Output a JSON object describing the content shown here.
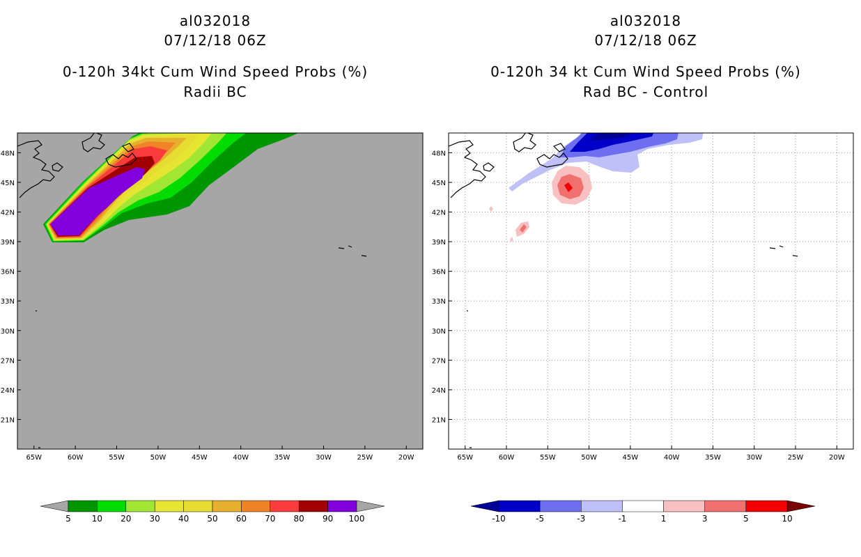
{
  "chart_data": [
    {
      "type": "heatmap",
      "storm_id": "al032018",
      "datetime": "07/12/18 06Z",
      "title": "0-120h 34kt Cum Wind Speed Probs (%)",
      "subtitle": "Radii BC",
      "x_ticks": [
        "65W",
        "60W",
        "55W",
        "50W",
        "45W",
        "40W",
        "35W",
        "30W",
        "25W",
        "20W"
      ],
      "y_ticks": [
        "48N",
        "45N",
        "42N",
        "39N",
        "36N",
        "33N",
        "30N",
        "27N",
        "24N",
        "21N"
      ],
      "xlim": [
        -67,
        -18
      ],
      "ylim": [
        18,
        50
      ],
      "grid": false,
      "background_color": "#a6a6a6",
      "colorbar": {
        "labels": [
          "5",
          "10",
          "20",
          "30",
          "40",
          "50",
          "60",
          "70",
          "80",
          "90",
          "100"
        ],
        "colors": [
          "#009600",
          "#00dc00",
          "#a0e632",
          "#e6e632",
          "#e6dc32",
          "#e6af2d",
          "#f08228",
          "#fa3c3c",
          "#a00000",
          "#8200dc"
        ],
        "end_colors": [
          "#a6a6a6",
          "#a6a6a6"
        ]
      },
      "probability_bands": [
        {
          "min": 5,
          "color": "#009600"
        },
        {
          "min": 10,
          "color": "#00dc00"
        },
        {
          "min": 20,
          "color": "#a0e632"
        },
        {
          "min": 30,
          "color": "#e6e632"
        },
        {
          "min": 40,
          "color": "#e6dc32"
        },
        {
          "min": 50,
          "color": "#e6af2d"
        },
        {
          "min": 60,
          "color": "#f08228"
        },
        {
          "min": 70,
          "color": "#fa3c3c"
        },
        {
          "min": 80,
          "color": "#a00000"
        },
        {
          "min": 90,
          "color": "#8200dc"
        }
      ]
    },
    {
      "type": "heatmap",
      "storm_id": "al032018",
      "datetime": "07/12/18 06Z",
      "title": "0-120h 34 kt Cum Wind Speed Probs (%)",
      "subtitle": "Rad BC - Control",
      "x_ticks": [
        "65W",
        "60W",
        "55W",
        "50W",
        "45W",
        "40W",
        "35W",
        "30W",
        "25W",
        "20W"
      ],
      "y_ticks": [
        "48N",
        "45N",
        "42N",
        "39N",
        "36N",
        "33N",
        "30N",
        "27N",
        "24N",
        "21N"
      ],
      "xlim": [
        -67,
        -18
      ],
      "ylim": [
        18,
        50
      ],
      "grid": true,
      "background_color": "#ffffff",
      "colorbar": {
        "labels": [
          "-10",
          "-5",
          "-3",
          "-1",
          "1",
          "3",
          "5",
          "10"
        ],
        "colors": [
          "#0000c8",
          "#6e6ef0",
          "#c0c0f8",
          "#ffffff",
          "#f8c0c0",
          "#f07070",
          "#f00000"
        ],
        "end_colors": [
          "#000096",
          "#780000"
        ]
      }
    }
  ]
}
